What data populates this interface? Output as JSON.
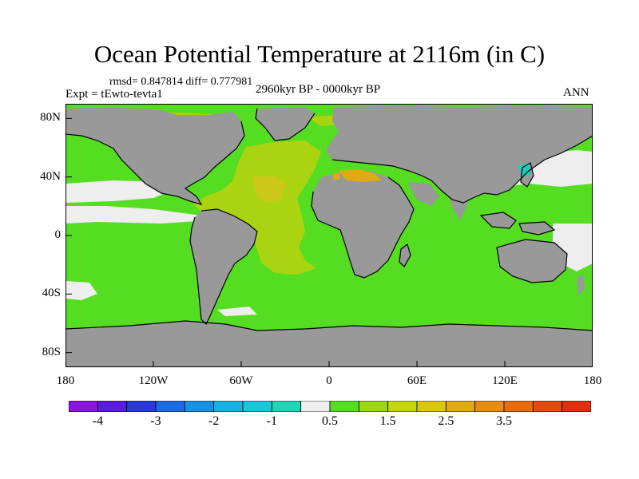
{
  "title": "Ocean Potential Temperature at 2116m (in C)",
  "stats": "rmsd= 0.847814 diff= 0.777981",
  "experiment": "Expt = tEwto-tevta1",
  "period": "2960kyr BP - 0000kyr BP",
  "season": "ANN",
  "lat_ticks": [
    {
      "label": "80N",
      "value": 80
    },
    {
      "label": "40N",
      "value": 40
    },
    {
      "label": "0",
      "value": 0
    },
    {
      "label": "40S",
      "value": -40
    },
    {
      "label": "80S",
      "value": -80
    }
  ],
  "lon_ticks": [
    {
      "label": "180",
      "value": -180
    },
    {
      "label": "120W",
      "value": -120
    },
    {
      "label": "60W",
      "value": -60
    },
    {
      "label": "0",
      "value": 0
    },
    {
      "label": "60E",
      "value": 60
    },
    {
      "label": "120E",
      "value": 120
    },
    {
      "label": "180",
      "value": 180
    }
  ],
  "colors": {
    "land": "#999999",
    "ocean_main": "#55dd22",
    "atlantic": "#aad411",
    "atlantic_warm": "#ccc81a",
    "med": "#e0aa10",
    "near_zero": "#eeeeee",
    "cyan_patch": "#22ccbb"
  },
  "colorbar": {
    "colors": [
      "#8a14e0",
      "#5a1ce0",
      "#2a3ad8",
      "#1e6ae0",
      "#1892e0",
      "#18b2e0",
      "#18c8d8",
      "#20d4b4",
      "#eeeeee",
      "#55dd22",
      "#9ad814",
      "#c4d80c",
      "#dcc80a",
      "#e0aa10",
      "#e68c12",
      "#e66c10",
      "#e44a10",
      "#e02e10"
    ],
    "labels": [
      {
        "text": "-4",
        "boundary": 1
      },
      {
        "text": "-3",
        "boundary": 3
      },
      {
        "text": "-2",
        "boundary": 5
      },
      {
        "text": "-1",
        "boundary": 7
      },
      {
        "text": "0.5",
        "boundary": 9
      },
      {
        "text": "1.5",
        "boundary": 11
      },
      {
        "text": "2.5",
        "boundary": 13
      },
      {
        "text": "3.5",
        "boundary": 15
      }
    ]
  }
}
